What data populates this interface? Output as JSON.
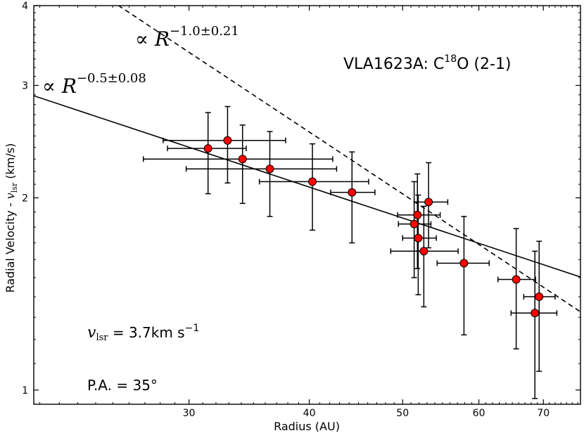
{
  "chart_data": {
    "type": "scatter",
    "x_scale": "log",
    "y_scale": "log",
    "xlabel": "Radius (AU)",
    "ylabel_prefix": "Radial Velocity - ",
    "ylabel_var": "v",
    "ylabel_sub": "lsr",
    "ylabel_unit": " (km/s)",
    "xlim": [
      20.7,
      76.5
    ],
    "ylim": [
      0.95,
      4.0
    ],
    "x_major_ticks": [
      {
        "value": 30,
        "label": "30"
      },
      {
        "value": 40,
        "label": "40"
      },
      {
        "value": 50,
        "label": "50"
      },
      {
        "value": 60,
        "label": "60"
      },
      {
        "value": 70,
        "label": "70"
      }
    ],
    "y_major_ticks": [
      {
        "value": 1,
        "label": "1"
      },
      {
        "value": 2,
        "label": "2"
      },
      {
        "value": 3,
        "label": "3"
      },
      {
        "value": 4,
        "label": "4"
      }
    ],
    "points": [
      {
        "x": 31.4,
        "y": 2.39,
        "xerr": [
          2.9,
          3.0
        ],
        "yerr": [
          0.36,
          0.33
        ]
      },
      {
        "x": 32.9,
        "y": 2.46,
        "xerr": [
          4.7,
          4.9
        ],
        "yerr": [
          0.35,
          0.32
        ]
      },
      {
        "x": 34.1,
        "y": 2.3,
        "xerr": [
          7.2,
          8.2
        ],
        "yerr": [
          0.34,
          0.3
        ]
      },
      {
        "x": 36.4,
        "y": 2.22,
        "xerr": [
          6.6,
          6.3
        ],
        "yerr": [
          0.35,
          0.32
        ]
      },
      {
        "x": 40.3,
        "y": 2.12,
        "xerr": [
          4.8,
          5.8
        ],
        "yerr": [
          0.34,
          0.31
        ]
      },
      {
        "x": 44.3,
        "y": 2.04,
        "xerr": [
          2.2,
          2.5
        ],
        "yerr": [
          0.34,
          0.32
        ]
      },
      {
        "x": 51.4,
        "y": 1.82,
        "xerr": [
          1.9,
          2.1
        ],
        "yerr": [
          0.32,
          0.3
        ]
      },
      {
        "x": 51.8,
        "y": 1.88,
        "xerr": [
          2.4,
          2.9
        ],
        "yerr": [
          0.33,
          0.3
        ]
      },
      {
        "x": 51.9,
        "y": 1.73,
        "xerr": [
          1.9,
          2.3
        ],
        "yerr": [
          0.32,
          0.29
        ]
      },
      {
        "x": 52.6,
        "y": 1.65,
        "xerr": [
          4.0,
          4.5
        ],
        "yerr": [
          0.3,
          0.29
        ]
      },
      {
        "x": 53.2,
        "y": 1.97,
        "xerr": [
          1.8,
          2.5
        ],
        "yerr": [
          0.3,
          0.3
        ]
      },
      {
        "x": 57.9,
        "y": 1.58,
        "xerr": [
          3.6,
          3.6
        ],
        "yerr": [
          0.36,
          0.29
        ]
      },
      {
        "x": 65.6,
        "y": 1.49,
        "xerr": [
          2.8,
          3.1
        ],
        "yerr": [
          0.33,
          0.3
        ]
      },
      {
        "x": 68.6,
        "y": 1.32,
        "xerr": [
          3.8,
          3.7
        ],
        "yerr": [
          0.35,
          0.33
        ]
      },
      {
        "x": 69.3,
        "y": 1.4,
        "xerr": [
          2.5,
          2.7
        ],
        "yerr": [
          0.33,
          0.31
        ]
      }
    ],
    "fits": [
      {
        "name": "power law fit -0.5",
        "style": "solid",
        "x0": 20.7,
        "y0": 2.89,
        "slope": -0.5,
        "range": [
          20.7,
          76.5
        ]
      },
      {
        "name": "power law fit -1.0",
        "style": "dashed",
        "x0": 20.7,
        "y0": 4.9,
        "slope": -1.0,
        "range": [
          20.7,
          76.5
        ]
      }
    ],
    "annotations": {
      "fit_dashed_prefix": "∝ ",
      "fit_dashed_var": "R",
      "fit_dashed_exp": "−1.0±0.21",
      "fit_solid_prefix": "∝ ",
      "fit_solid_var": "R",
      "fit_solid_exp": "−0.5±0.08",
      "title_main": "VLA1623A: C",
      "title_sup": "18",
      "title_rest": "O (2-1)",
      "vlsr_var": "v",
      "vlsr_sub": "lsr",
      "vlsr_value": " = 3.7km s",
      "vlsr_sup": "−1",
      "pa": "P.A. = 35°"
    },
    "colors": {
      "marker_fill": "#ff0000",
      "marker_edge": "#000000",
      "line": "#000000"
    }
  }
}
